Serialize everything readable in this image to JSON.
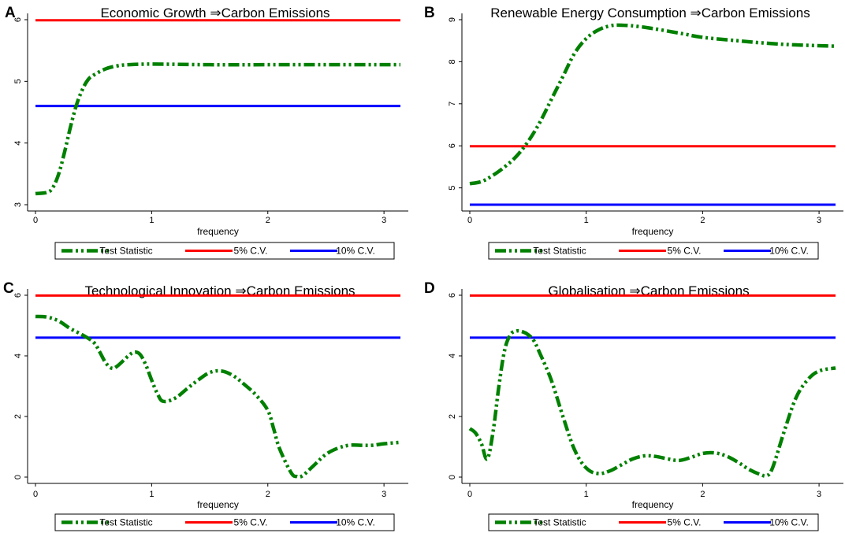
{
  "colors": {
    "test": "#008000",
    "cv5": "#ff0000",
    "cv10": "#0000ff"
  },
  "chart_data": [
    {
      "panel": "A",
      "type": "line",
      "title": "Economic Growth ⇒Carbon Emissions",
      "xlabel": "frequency",
      "ylabel": "",
      "xlim": [
        0,
        3.14159
      ],
      "ylim": [
        3,
        6
      ],
      "xticks": [
        0,
        1,
        2,
        3
      ],
      "yticks": [
        3,
        4,
        5,
        6
      ],
      "legend": [
        "Test Statistic",
        "5% C.V.",
        "10% C.V."
      ],
      "cv5": 5.99,
      "cv10": 4.6,
      "series": [
        {
          "name": "Test Statistic",
          "x": [
            0,
            0.1,
            0.15,
            0.2,
            0.25,
            0.3,
            0.35,
            0.4,
            0.45,
            0.5,
            0.6,
            0.7,
            0.8,
            1.0,
            1.5,
            2.0,
            2.5,
            3.14159
          ],
          "y": [
            3.18,
            3.2,
            3.28,
            3.5,
            3.85,
            4.25,
            4.6,
            4.85,
            5.02,
            5.1,
            5.2,
            5.25,
            5.27,
            5.28,
            5.27,
            5.27,
            5.27,
            5.27
          ]
        }
      ]
    },
    {
      "panel": "B",
      "type": "line",
      "title": "Renewable Energy Consumption ⇒Carbon Emissions",
      "xlabel": "frequency",
      "ylabel": "",
      "xlim": [
        0,
        3.14159
      ],
      "ylim": [
        4.6,
        9
      ],
      "xticks": [
        0,
        1,
        2,
        3
      ],
      "yticks": [
        5,
        6,
        7,
        8,
        9
      ],
      "legend": [
        "Test Statistic",
        "5% C.V.",
        "10% C.V."
      ],
      "cv5": 5.99,
      "cv10": 4.6,
      "series": [
        {
          "name": "Test Statistic",
          "x": [
            0,
            0.1,
            0.2,
            0.3,
            0.4,
            0.5,
            0.6,
            0.7,
            0.8,
            0.9,
            1.0,
            1.1,
            1.2,
            1.3,
            1.5,
            1.8,
            2.0,
            2.3,
            2.5,
            2.8,
            3.14159
          ],
          "y": [
            5.1,
            5.15,
            5.3,
            5.5,
            5.75,
            6.1,
            6.55,
            7.1,
            7.65,
            8.2,
            8.55,
            8.75,
            8.85,
            8.87,
            8.82,
            8.68,
            8.58,
            8.5,
            8.45,
            8.4,
            8.37
          ]
        }
      ]
    },
    {
      "panel": "C",
      "type": "line",
      "title": "Technological Innovation ⇒Carbon Emissions",
      "xlabel": "frequency",
      "ylabel": "",
      "xlim": [
        0,
        3.14159
      ],
      "ylim": [
        0,
        6
      ],
      "xticks": [
        0,
        1,
        2,
        3
      ],
      "yticks": [
        0,
        2,
        4,
        6
      ],
      "legend": [
        "Test Statistic",
        "5% C.V.",
        "10% C.V."
      ],
      "cv5": 5.99,
      "cv10": 4.6,
      "series": [
        {
          "name": "Test Statistic",
          "x": [
            0,
            0.1,
            0.2,
            0.3,
            0.4,
            0.5,
            0.55,
            0.6,
            0.65,
            0.7,
            0.8,
            0.85,
            0.9,
            0.95,
            1.0,
            1.05,
            1.1,
            1.2,
            1.3,
            1.4,
            1.5,
            1.6,
            1.7,
            1.8,
            1.9,
            2.0,
            2.05,
            2.1,
            2.2,
            2.25,
            2.3,
            2.4,
            2.5,
            2.6,
            2.7,
            2.8,
            2.9,
            3.0,
            3.14159
          ],
          "y": [
            5.3,
            5.28,
            5.15,
            4.9,
            4.7,
            4.45,
            4.15,
            3.8,
            3.6,
            3.65,
            4.0,
            4.12,
            4.05,
            3.7,
            3.2,
            2.75,
            2.5,
            2.6,
            2.9,
            3.2,
            3.45,
            3.5,
            3.35,
            3.05,
            2.7,
            2.2,
            1.6,
            0.95,
            0.15,
            0.02,
            0.05,
            0.4,
            0.75,
            0.95,
            1.05,
            1.05,
            1.05,
            1.1,
            1.15
          ]
        }
      ]
    },
    {
      "panel": "D",
      "type": "line",
      "title": "Globalisation ⇒Carbon Emissions",
      "xlabel": "frequency",
      "ylabel": "",
      "xlim": [
        0,
        3.14159
      ],
      "ylim": [
        0,
        6
      ],
      "xticks": [
        0,
        1,
        2,
        3
      ],
      "yticks": [
        0,
        2,
        4,
        6
      ],
      "legend": [
        "Test Statistic",
        "5% C.V.",
        "10% C.V."
      ],
      "cv5": 5.99,
      "cv10": 4.6,
      "series": [
        {
          "name": "Test Statistic",
          "x": [
            0,
            0.05,
            0.1,
            0.15,
            0.2,
            0.25,
            0.3,
            0.35,
            0.4,
            0.45,
            0.5,
            0.55,
            0.6,
            0.7,
            0.8,
            0.9,
            1.0,
            1.1,
            1.2,
            1.3,
            1.4,
            1.5,
            1.6,
            1.7,
            1.8,
            1.9,
            2.0,
            2.1,
            2.2,
            2.3,
            2.4,
            2.5,
            2.55,
            2.6,
            2.7,
            2.8,
            2.9,
            3.0,
            3.14159
          ],
          "y": [
            1.6,
            1.45,
            1.1,
            0.6,
            1.5,
            3.0,
            4.2,
            4.7,
            4.82,
            4.8,
            4.7,
            4.5,
            4.1,
            3.2,
            2.0,
            0.9,
            0.3,
            0.12,
            0.2,
            0.4,
            0.6,
            0.7,
            0.68,
            0.6,
            0.55,
            0.65,
            0.78,
            0.8,
            0.7,
            0.5,
            0.25,
            0.08,
            0.05,
            0.3,
            1.5,
            2.6,
            3.2,
            3.5,
            3.6
          ]
        }
      ]
    }
  ]
}
